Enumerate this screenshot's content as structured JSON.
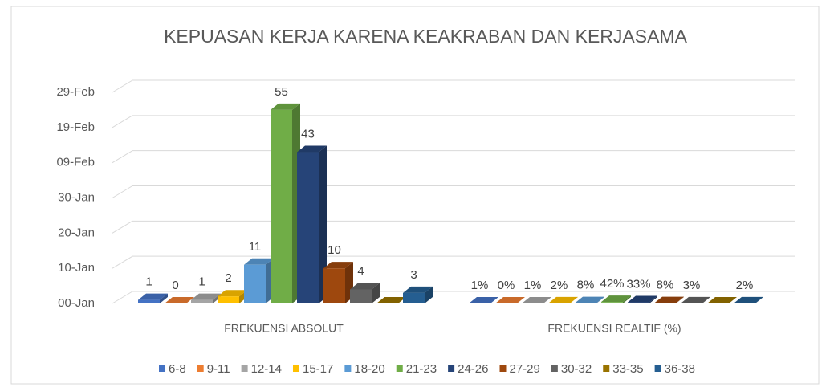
{
  "chart_data": {
    "type": "bar3d",
    "title": "KEPUASAN KERJA KARENA KEAKRABAN DAN KERJASAMA",
    "categories": [
      "FREKUENSI ABSOLUT",
      "FREKUENSI REALTIF (%)"
    ],
    "ylim": [
      0,
      60
    ],
    "yticks": [
      {
        "value": 0,
        "label": "00-Jan"
      },
      {
        "value": 10,
        "label": "10-Jan"
      },
      {
        "value": 20,
        "label": "20-Jan"
      },
      {
        "value": 30,
        "label": "30-Jan"
      },
      {
        "value": 40,
        "label": "09-Feb"
      },
      {
        "value": 50,
        "label": "19-Feb"
      },
      {
        "value": 60,
        "label": "29-Feb"
      }
    ],
    "grid": true,
    "legend": "bottom",
    "series": [
      {
        "name": "6-8",
        "color": "#4472c4",
        "values": [
          1,
          0.01
        ],
        "value_labels": [
          "1",
          "1%"
        ]
      },
      {
        "name": "9-11",
        "color": "#ed7d31",
        "values": [
          0,
          0
        ],
        "value_labels": [
          "0",
          "0%"
        ]
      },
      {
        "name": "12-14",
        "color": "#a5a5a5",
        "values": [
          1,
          0.01
        ],
        "value_labels": [
          "1",
          "1%"
        ]
      },
      {
        "name": "15-17",
        "color": "#ffc000",
        "values": [
          2,
          0.02
        ],
        "value_labels": [
          "2",
          "2%"
        ]
      },
      {
        "name": "18-20",
        "color": "#5b9bd5",
        "values": [
          11,
          0.08
        ],
        "value_labels": [
          "11",
          "8%"
        ]
      },
      {
        "name": "21-23",
        "color": "#70ad47",
        "values": [
          55,
          0.42
        ],
        "value_labels": [
          "55",
          "42%"
        ]
      },
      {
        "name": "24-26",
        "color": "#264478",
        "values": [
          43,
          0.33
        ],
        "value_labels": [
          "43",
          "33%"
        ]
      },
      {
        "name": "27-29",
        "color": "#9e480e",
        "values": [
          10,
          0.08
        ],
        "value_labels": [
          "10",
          "8%"
        ]
      },
      {
        "name": "30-32",
        "color": "#636363",
        "values": [
          4,
          0.03
        ],
        "value_labels": [
          "4",
          "3%"
        ]
      },
      {
        "name": "33-35",
        "color": "#997300",
        "values": [
          0,
          0
        ],
        "value_labels": [
          null,
          null
        ]
      },
      {
        "name": "36-38",
        "color": "#255e91",
        "values": [
          3,
          0.02
        ],
        "value_labels": [
          "3",
          "2%"
        ]
      }
    ]
  }
}
